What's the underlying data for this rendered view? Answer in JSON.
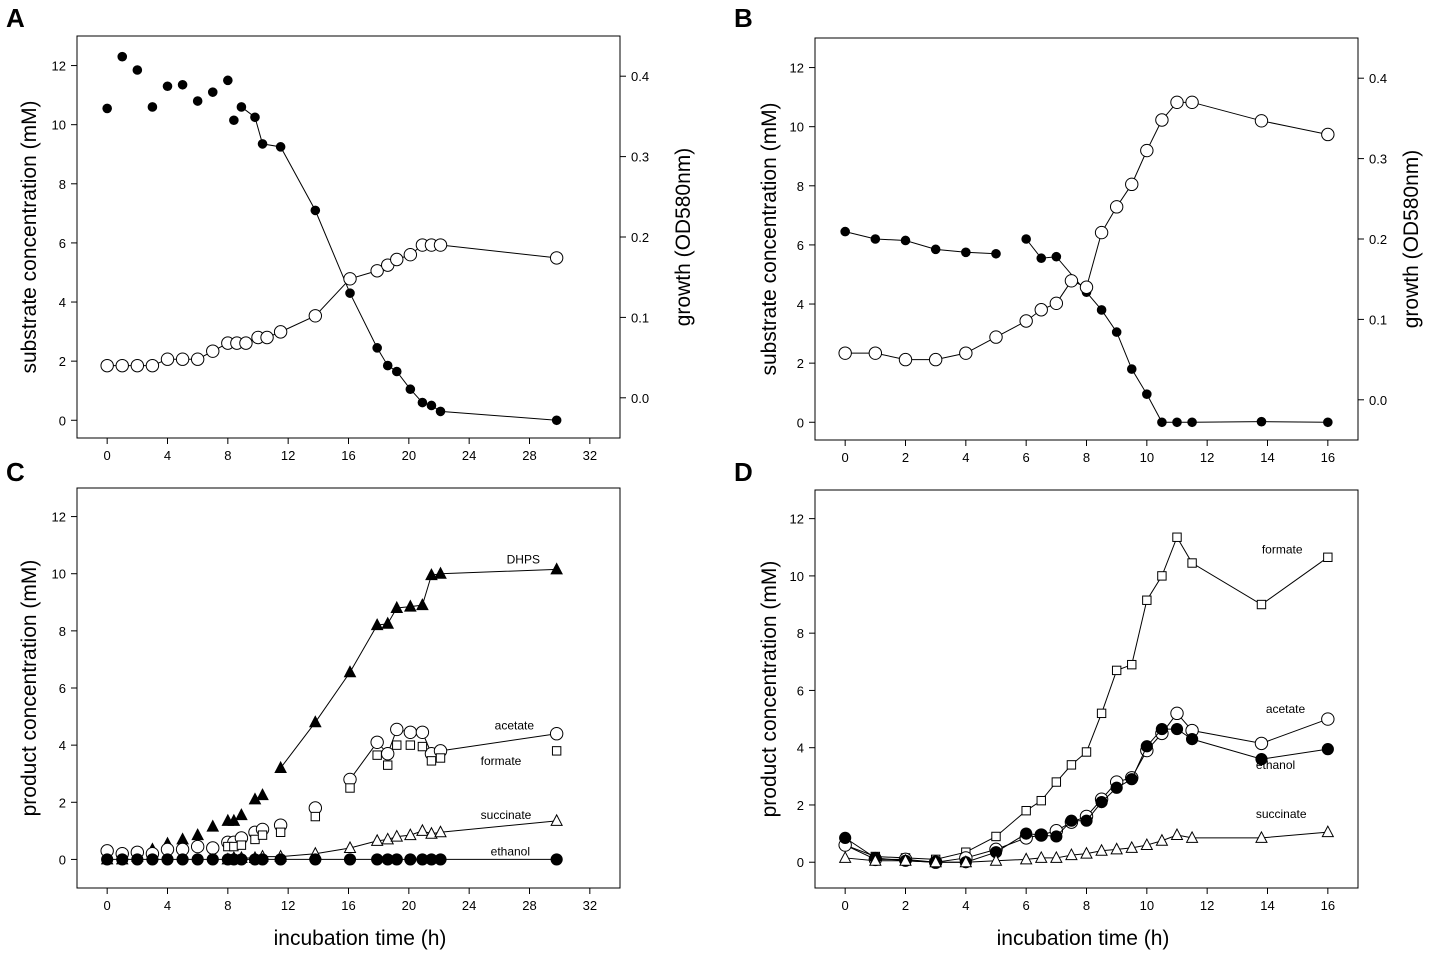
{
  "chart_data": [
    {
      "panel": "A",
      "type": "scatter",
      "title": "",
      "xlabel": "",
      "ylabel": "substrate concentration (mM)",
      "y2label": "growth (OD580nm)",
      "xlim": [
        -2,
        34
      ],
      "ylim": [
        -0.6,
        13.0
      ],
      "y2lim": [
        -0.05,
        0.45
      ],
      "xticks": [
        0,
        4,
        8,
        12,
        16,
        20,
        24,
        28,
        32
      ],
      "yticks": [
        0,
        2,
        4,
        6,
        8,
        10,
        12
      ],
      "y2ticks": [
        "0.0",
        "0.1",
        "0.2",
        "0.3",
        "0.4"
      ],
      "series": [
        {
          "name": "substrate",
          "marker": "filled-circle-small",
          "axis": "left",
          "line_from_index": 10,
          "x": [
            0,
            1,
            2,
            3,
            4,
            5,
            6,
            7,
            8,
            8.4,
            8.9,
            9.8,
            10.3,
            11.5,
            13.8,
            16.1,
            17.9,
            18.6,
            19.2,
            20.1,
            20.9,
            21.5,
            22.1,
            29.8
          ],
          "y": [
            10.55,
            12.3,
            11.85,
            10.6,
            11.3,
            11.35,
            10.8,
            11.1,
            11.5,
            10.15,
            10.6,
            10.25,
            9.35,
            9.25,
            7.1,
            4.3,
            2.45,
            1.85,
            1.65,
            1.05,
            0.6,
            0.5,
            0.3,
            0.0
          ]
        },
        {
          "name": "growth",
          "marker": "open-circle",
          "axis": "right",
          "x": [
            0,
            1,
            2,
            3,
            4,
            5,
            6,
            7,
            8,
            8.6,
            9.2,
            10.0,
            10.6,
            11.5,
            13.8,
            16.1,
            17.9,
            18.6,
            19.2,
            20.1,
            20.9,
            21.5,
            22.1,
            29.8
          ],
          "y": [
            0.04,
            0.04,
            0.04,
            0.04,
            0.048,
            0.048,
            0.048,
            0.058,
            0.068,
            0.068,
            0.068,
            0.075,
            0.075,
            0.082,
            0.102,
            0.148,
            0.158,
            0.165,
            0.172,
            0.178,
            0.19,
            0.19,
            0.19,
            0.174
          ]
        }
      ]
    },
    {
      "panel": "B",
      "type": "scatter",
      "title": "",
      "xlabel": "",
      "ylabel": "substrate concentration (mM)",
      "y2label": "growth (OD580nm)",
      "xlim": [
        -1,
        17
      ],
      "ylim": [
        -0.6,
        13.0
      ],
      "y2lim": [
        -0.05,
        0.45
      ],
      "xticks": [
        0,
        2,
        4,
        6,
        8,
        10,
        12,
        14,
        16
      ],
      "yticks": [
        0,
        2,
        4,
        6,
        8,
        10,
        12
      ],
      "y2ticks": [
        "0.0",
        "0.1",
        "0.2",
        "0.3",
        "0.4"
      ],
      "series": [
        {
          "name": "substrate",
          "marker": "filled-circle-small",
          "axis": "left",
          "x": [
            0,
            1,
            2,
            3,
            4,
            5,
            6,
            6.5,
            7,
            8,
            8.5,
            9,
            9.5,
            10,
            10.5,
            11,
            11.5,
            13.8,
            16
          ],
          "y": [
            6.45,
            6.2,
            6.15,
            5.85,
            5.75,
            5.7,
            6.2,
            5.55,
            5.6,
            4.4,
            3.8,
            3.05,
            1.8,
            0.95,
            0.0,
            0.0,
            0.0,
            0.02,
            0.0
          ],
          "line_breaks": [
            5
          ]
        },
        {
          "name": "growth",
          "marker": "open-circle",
          "axis": "right",
          "x": [
            0,
            1,
            2,
            3,
            4,
            5,
            6,
            6.5,
            7,
            7.5,
            8,
            8.5,
            9,
            9.5,
            10,
            10.5,
            11,
            11.5,
            13.8,
            16
          ],
          "y": [
            0.058,
            0.058,
            0.05,
            0.05,
            0.058,
            0.078,
            0.098,
            0.112,
            0.12,
            0.148,
            0.14,
            0.208,
            0.24,
            0.268,
            0.31,
            0.348,
            0.37,
            0.37,
            0.347,
            0.33
          ]
        }
      ]
    },
    {
      "panel": "C",
      "type": "scatter",
      "title": "",
      "xlabel": "incubation time (h)",
      "ylabel": "product concentration (mM)",
      "xlim": [
        -2,
        34
      ],
      "ylim": [
        -1.0,
        13.0
      ],
      "xticks": [
        0,
        4,
        8,
        12,
        16,
        20,
        24,
        28,
        32
      ],
      "yticks": [
        0,
        2,
        4,
        6,
        8,
        10,
        12
      ],
      "labels": [
        {
          "series": "DHPS",
          "text": "DHPS"
        },
        {
          "series": "acetate",
          "text": "acetate"
        },
        {
          "series": "formate",
          "text": "formate"
        },
        {
          "series": "succinate",
          "text": "succinate"
        },
        {
          "series": "ethanol",
          "text": "ethanol"
        }
      ],
      "series": [
        {
          "name": "DHPS",
          "marker": "filled-triangle",
          "line_from_index": 13,
          "x": [
            0,
            1,
            2,
            3,
            4,
            5,
            6,
            7,
            8,
            8.4,
            8.9,
            9.8,
            10.3,
            11.5,
            13.8,
            16.1,
            17.9,
            18.6,
            19.2,
            20.1,
            20.9,
            21.5,
            22.1,
            29.8
          ],
          "y": [
            0.0,
            0.0,
            0.1,
            0.35,
            0.55,
            0.7,
            0.85,
            1.15,
            1.35,
            1.35,
            1.55,
            2.1,
            2.25,
            3.2,
            4.8,
            6.55,
            8.2,
            8.25,
            8.8,
            8.85,
            8.9,
            9.95,
            10.0,
            10.15
          ]
        },
        {
          "name": "acetate",
          "marker": "open-circle",
          "line_from_index": 15,
          "x": [
            0,
            1,
            2,
            3,
            4,
            5,
            6,
            7,
            8,
            8.4,
            8.9,
            9.8,
            10.3,
            11.5,
            13.8,
            16.1,
            17.9,
            18.6,
            19.2,
            20.1,
            20.9,
            21.5,
            22.1,
            29.8
          ],
          "y": [
            0.3,
            0.2,
            0.25,
            0.2,
            0.35,
            0.35,
            0.45,
            0.4,
            0.6,
            0.6,
            0.75,
            0.95,
            1.05,
            1.2,
            1.8,
            2.8,
            4.1,
            3.7,
            4.55,
            4.45,
            4.45,
            3.7,
            3.8,
            4.4
          ]
        },
        {
          "name": "formate",
          "marker": "open-square",
          "line_from_index": 15,
          "x": [
            8,
            8.4,
            8.9,
            9.8,
            10.3,
            11.5,
            13.8,
            16.1,
            17.9,
            18.6,
            19.2,
            20.1,
            20.9,
            21.5,
            22.1,
            29.8
          ],
          "y": [
            0.45,
            0.45,
            0.5,
            0.7,
            0.85,
            0.95,
            1.5,
            2.5,
            3.65,
            3.3,
            4.0,
            4.0,
            3.95,
            3.45,
            3.55,
            3.8
          ]
        },
        {
          "name": "succinate",
          "marker": "open-triangle",
          "line_from_index": 0,
          "x": [
            8,
            8.4,
            8.9,
            9.8,
            10.3,
            11.5,
            13.8,
            16.1,
            17.9,
            18.6,
            19.2,
            20.1,
            20.9,
            21.5,
            22.1,
            29.8
          ],
          "y": [
            0.0,
            0.05,
            0.05,
            0.05,
            0.1,
            0.1,
            0.2,
            0.4,
            0.65,
            0.7,
            0.8,
            0.85,
            1.0,
            0.9,
            0.95,
            1.35
          ]
        },
        {
          "name": "ethanol",
          "marker": "filled-circle",
          "line_from_index": 0,
          "x": [
            0,
            1,
            2,
            3,
            4,
            5,
            6,
            7,
            8,
            8.4,
            8.9,
            9.8,
            10.3,
            11.5,
            13.8,
            16.1,
            17.9,
            18.6,
            19.2,
            20.1,
            20.9,
            21.5,
            22.1,
            29.8
          ],
          "y": [
            0,
            0,
            0,
            0,
            0,
            0,
            0,
            0,
            0,
            0,
            0,
            0,
            0,
            0,
            0,
            0,
            0,
            0,
            0,
            0,
            0,
            0,
            0,
            0
          ]
        }
      ]
    },
    {
      "panel": "D",
      "type": "line",
      "title": "",
      "xlabel": "incubation time (h)",
      "ylabel": "product concentration (mM)",
      "xlim": [
        -1,
        17
      ],
      "ylim": [
        -0.9,
        13.0
      ],
      "xticks": [
        0,
        2,
        4,
        6,
        8,
        10,
        12,
        14,
        16
      ],
      "yticks": [
        0,
        2,
        4,
        6,
        8,
        10,
        12
      ],
      "labels": [
        {
          "series": "formate",
          "text": "formate"
        },
        {
          "series": "acetate",
          "text": "acetate"
        },
        {
          "series": "ethanol",
          "text": "ethanol"
        },
        {
          "series": "succinate",
          "text": "succinate"
        }
      ],
      "series": [
        {
          "name": "formate",
          "marker": "open-square",
          "x": [
            0,
            1,
            2,
            3,
            4,
            5,
            6,
            6.5,
            7,
            7.5,
            8,
            8.5,
            9,
            9.5,
            10,
            10.5,
            11,
            11.5,
            13.8,
            16
          ],
          "y": [
            0.6,
            0.2,
            0.15,
            0.1,
            0.35,
            0.9,
            1.8,
            2.15,
            2.8,
            3.4,
            3.85,
            5.2,
            6.7,
            6.9,
            9.15,
            10.0,
            11.35,
            10.45,
            9.0,
            10.65
          ]
        },
        {
          "name": "acetate",
          "marker": "open-circle",
          "x": [
            0,
            1,
            2,
            3,
            4,
            5,
            6,
            6.5,
            7,
            7.5,
            8,
            8.5,
            9,
            9.5,
            10,
            10.5,
            11,
            11.5,
            13.8,
            16
          ],
          "y": [
            0.6,
            0.1,
            0.1,
            0.0,
            0.15,
            0.45,
            0.85,
            0.95,
            1.1,
            1.4,
            1.6,
            2.2,
            2.8,
            2.95,
            3.9,
            4.5,
            5.2,
            4.6,
            4.15,
            5.0
          ]
        },
        {
          "name": "ethanol",
          "marker": "filled-circle",
          "x": [
            0,
            1,
            2,
            3,
            4,
            5,
            6,
            6.5,
            7,
            7.5,
            8,
            8.5,
            9,
            9.5,
            10,
            10.5,
            11,
            11.5,
            13.8,
            16
          ],
          "y": [
            0.85,
            0.15,
            0.05,
            0.0,
            0.0,
            0.35,
            1.0,
            0.95,
            0.9,
            1.45,
            1.45,
            2.1,
            2.6,
            2.9,
            4.05,
            4.65,
            4.65,
            4.3,
            3.6,
            3.95
          ]
        },
        {
          "name": "succinate",
          "marker": "open-triangle",
          "x": [
            0,
            1,
            2,
            3,
            4,
            5,
            6,
            6.5,
            7,
            7.5,
            8,
            8.5,
            9,
            9.5,
            10,
            10.5,
            11,
            11.5,
            13.8,
            16
          ],
          "y": [
            0.15,
            0.05,
            0.05,
            0.0,
            0.0,
            0.05,
            0.1,
            0.15,
            0.15,
            0.25,
            0.3,
            0.4,
            0.45,
            0.5,
            0.6,
            0.75,
            0.95,
            0.85,
            0.85,
            1.05
          ]
        }
      ]
    }
  ]
}
